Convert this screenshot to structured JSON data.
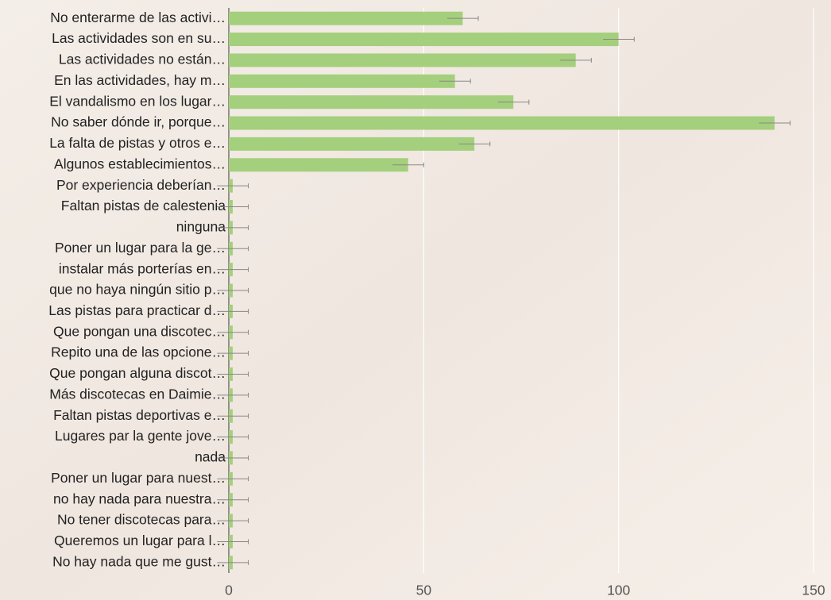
{
  "chart_data": {
    "type": "bar",
    "orientation": "horizontal",
    "categories": [
      "No enterarme de las activi…",
      "Las actividades son en su…",
      "Las actividades no están…",
      "En las actividades, hay m…",
      "El vandalismo en los lugar…",
      "No saber dónde ir, porque…",
      "La falta de pistas y otros e…",
      "Algunos establecimientos…",
      "Por experiencia deberían…",
      "Faltan pistas de calestenia",
      "ninguna",
      "Poner un lugar para la ge…",
      "instalar más porterías en…",
      "que no haya ningún sitio p…",
      "Las pistas para practicar d…",
      "Que pongan una discotec…",
      "Repito una de las opcione…",
      "Que pongan alguna discot…",
      "Más discotecas en Daimie…",
      "Faltan pistas deportivas e…",
      "Lugares par la gente jove…",
      "nada",
      "Poner un lugar para nuest…",
      "no hay nada para nuestra…",
      "No tener discotecas para…",
      "Queremos un lugar para l…",
      "No hay nada que me gust…"
    ],
    "values": [
      60,
      100,
      89,
      58,
      73,
      140,
      63,
      46,
      1,
      1,
      1,
      1,
      1,
      1,
      1,
      1,
      1,
      1,
      1,
      1,
      1,
      1,
      1,
      1,
      1,
      1,
      1
    ],
    "errors": [
      4,
      4,
      4,
      4,
      4,
      4,
      4,
      4,
      4,
      4,
      4,
      4,
      4,
      4,
      4,
      4,
      4,
      4,
      4,
      4,
      4,
      4,
      4,
      4,
      4,
      4,
      4
    ],
    "color": "#a4cf7c",
    "xlim": [
      0,
      150
    ],
    "xticks": [
      0,
      50,
      100,
      150
    ],
    "grid": true
  }
}
